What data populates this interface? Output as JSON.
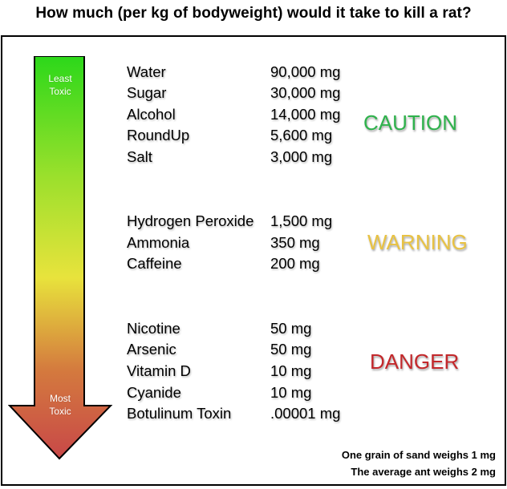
{
  "title": "How much (per kg of bodyweight) would it take to kill a rat?",
  "arrow": {
    "top_label_line1": "Least",
    "top_label_line2": "Toxic",
    "bottom_label_line1": "Most",
    "bottom_label_line2": "Toxic",
    "gradient_colors": [
      "#2cd81a",
      "#9be02c",
      "#e8e33c",
      "#d47a3e",
      "#c84848"
    ]
  },
  "groups": [
    {
      "level": "CAUTION",
      "color": "#2fb24c",
      "items": [
        {
          "name": "Water",
          "dose": "90,000 mg"
        },
        {
          "name": "Sugar",
          "dose": "30,000 mg"
        },
        {
          "name": "Alcohol",
          "dose": "14,000 mg"
        },
        {
          "name": "RoundUp",
          "dose": "5,600 mg"
        },
        {
          "name": "Salt",
          "dose": "3,000 mg"
        }
      ]
    },
    {
      "level": "WARNING",
      "color": "#e8c243",
      "items": [
        {
          "name": "Hydrogen Peroxide",
          "dose": "1,500 mg"
        },
        {
          "name": "Ammonia",
          "dose": "350 mg"
        },
        {
          "name": "Caffeine",
          "dose": "200 mg"
        }
      ]
    },
    {
      "level": "DANGER",
      "color": "#c3282b",
      "items": [
        {
          "name": "Nicotine",
          "dose": "50 mg"
        },
        {
          "name": "Arsenic",
          "dose": "50 mg"
        },
        {
          "name": "Vitamin D",
          "dose": "10 mg"
        },
        {
          "name": "Cyanide",
          "dose": "10 mg"
        },
        {
          "name": "Botulinum Toxin",
          "dose": ".00001 mg"
        }
      ]
    }
  ],
  "notes": [
    "One grain of sand weighs 1 mg",
    "The average ant weighs 2 mg"
  ]
}
